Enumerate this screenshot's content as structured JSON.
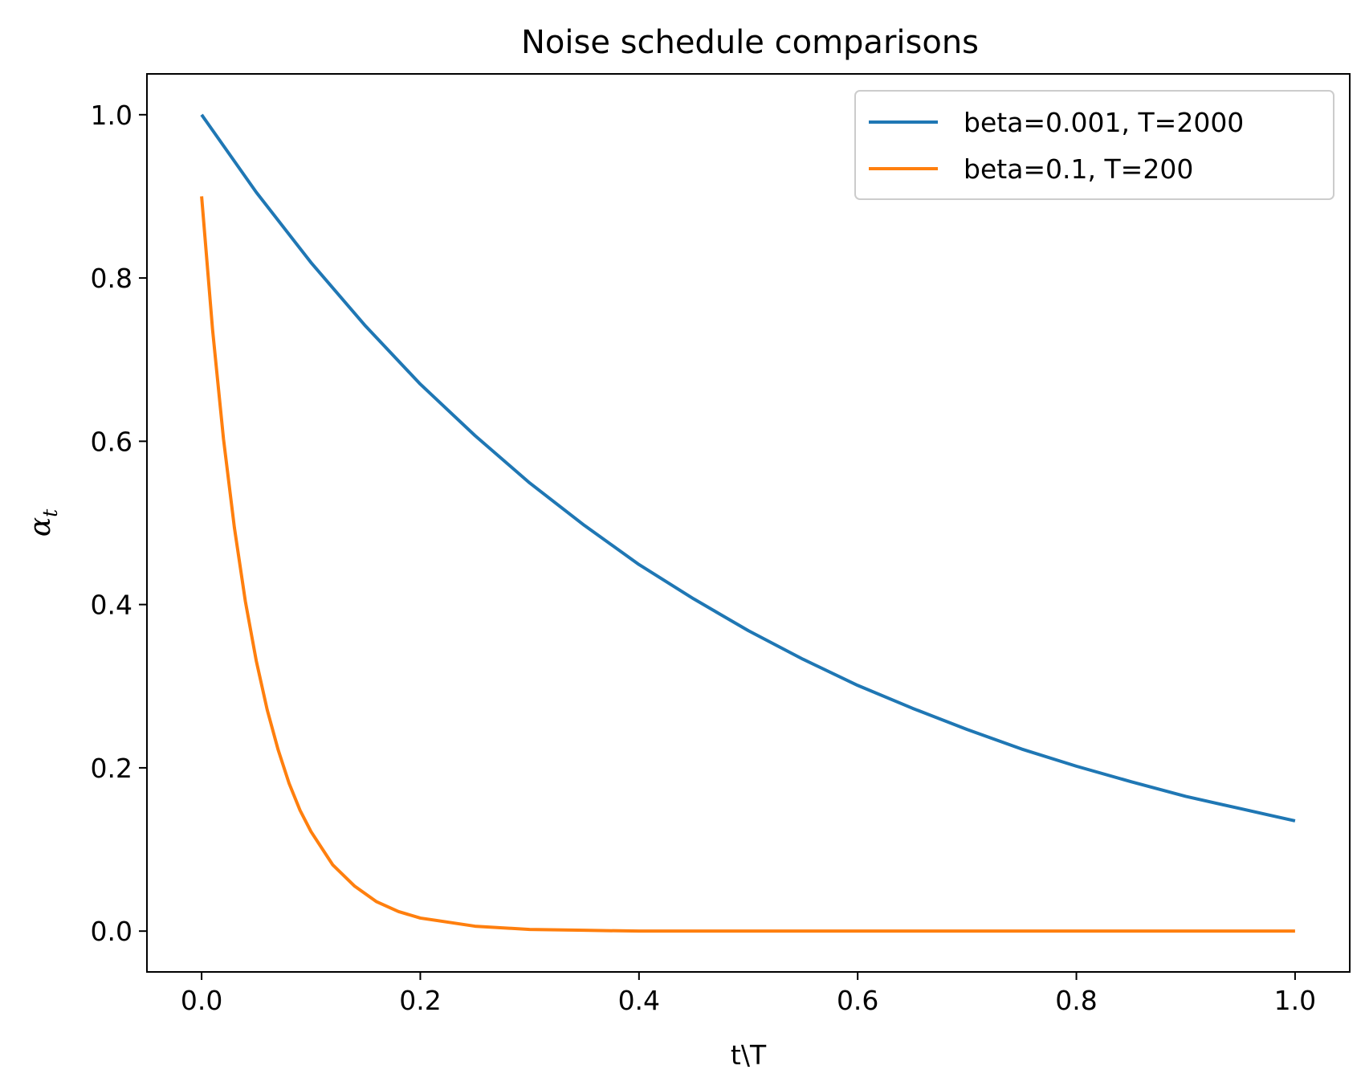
{
  "chart_data": {
    "type": "line",
    "title": "Noise schedule comparisons",
    "xlabel": "t\\T",
    "ylabel": {
      "base": "α",
      "subscript": "t"
    },
    "xlim": [
      -0.05,
      1.05
    ],
    "ylim": [
      -0.05,
      1.05
    ],
    "xticks": [
      0.0,
      0.2,
      0.4,
      0.6,
      0.8,
      1.0
    ],
    "yticks": [
      0.0,
      0.2,
      0.4,
      0.6,
      0.8,
      1.0
    ],
    "xtick_labels": [
      "0.0",
      "0.2",
      "0.4",
      "0.6",
      "0.8",
      "1.0"
    ],
    "ytick_labels": [
      "0.0",
      "0.2",
      "0.4",
      "0.6",
      "0.8",
      "1.0"
    ],
    "grid": false,
    "legend_position": "top-right",
    "series": [
      {
        "name": "beta=0.001, T=2000",
        "color": "#1f77b4",
        "x": [
          0.0,
          0.05,
          0.1,
          0.15,
          0.2,
          0.25,
          0.3,
          0.35,
          0.4,
          0.45,
          0.5,
          0.55,
          0.6,
          0.65,
          0.7,
          0.75,
          0.8,
          0.85,
          0.9,
          0.95,
          1.0
        ],
        "y": [
          1.0,
          0.905,
          0.819,
          0.741,
          0.67,
          0.607,
          0.549,
          0.497,
          0.449,
          0.407,
          0.368,
          0.333,
          0.301,
          0.273,
          0.247,
          0.223,
          0.202,
          0.183,
          0.165,
          0.15,
          0.135
        ]
      },
      {
        "name": "beta=0.1, T=200",
        "color": "#ff7f0e",
        "x": [
          0.0,
          0.01,
          0.02,
          0.03,
          0.04,
          0.05,
          0.06,
          0.07,
          0.08,
          0.09,
          0.1,
          0.12,
          0.14,
          0.16,
          0.18,
          0.2,
          0.25,
          0.3,
          0.35,
          0.4,
          0.5,
          0.6,
          0.7,
          0.8,
          0.9,
          1.0
        ],
        "y": [
          0.9,
          0.737,
          0.603,
          0.494,
          0.404,
          0.331,
          0.271,
          0.222,
          0.181,
          0.148,
          0.122,
          0.081,
          0.055,
          0.036,
          0.024,
          0.016,
          0.006,
          0.002,
          0.001,
          0.0,
          0.0,
          0.0,
          0.0,
          0.0,
          0.0,
          0.0
        ]
      }
    ]
  }
}
